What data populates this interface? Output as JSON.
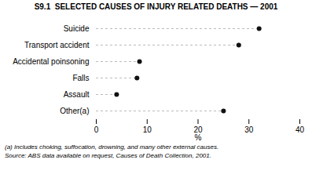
{
  "chart_data": {
    "type": "dot",
    "orientation": "horizontal",
    "title": "S9.1  SELECTED CAUSES OF INJURY RELATED DEATHS — 2001",
    "categories": [
      "Suicide",
      "Transport accident",
      "Accidental poinsoning",
      "Falls",
      "Assault",
      "Other(a)"
    ],
    "values": [
      32,
      28,
      8.5,
      8,
      4,
      25
    ],
    "color": "#111111",
    "xlabel": "%",
    "xlim": [
      0,
      40
    ],
    "xticks": [
      0,
      10,
      20,
      30,
      40
    ],
    "annotations": [
      "(a) Includes choking, suffocation, drowning, and many other external causes.",
      "Source: ABS data available on request, Causes of Death Collection, 2001."
    ]
  }
}
